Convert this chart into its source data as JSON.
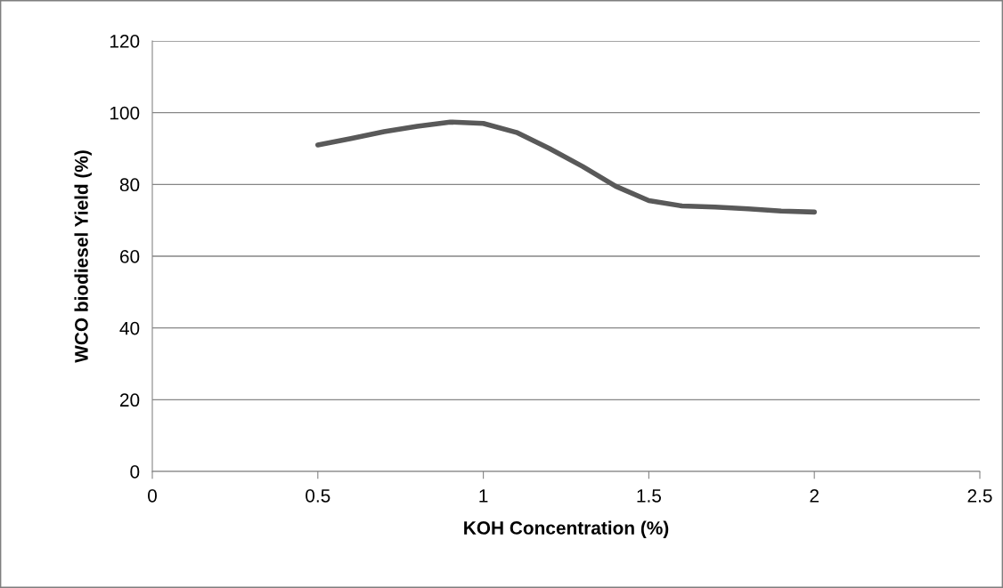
{
  "chart_data": {
    "type": "line",
    "xlabel": "KOH Concentration (%)",
    "ylabel": "WCO biodiesel Yield (%)",
    "x": [
      0.5,
      0.6,
      0.7,
      0.8,
      0.9,
      1.0,
      1.1,
      1.2,
      1.3,
      1.4,
      1.5,
      1.6,
      1.7,
      1.8,
      1.9,
      2.0
    ],
    "series": [
      {
        "color": "#595959",
        "values": [
          91,
          92.8,
          94.7,
          96.2,
          97.4,
          97,
          94.5,
          90,
          85,
          79.5,
          75.5,
          74,
          73.7,
          73.2,
          72.6,
          72.3
        ]
      }
    ],
    "xlim": [
      0,
      2.5
    ],
    "xticks": [
      0,
      0.5,
      1,
      1.5,
      2,
      2.5
    ],
    "ylim": [
      0,
      120
    ],
    "yticks": [
      0,
      20,
      40,
      60,
      80,
      100,
      120
    ],
    "grid": "y",
    "marker": "none",
    "line_style": "solid"
  }
}
